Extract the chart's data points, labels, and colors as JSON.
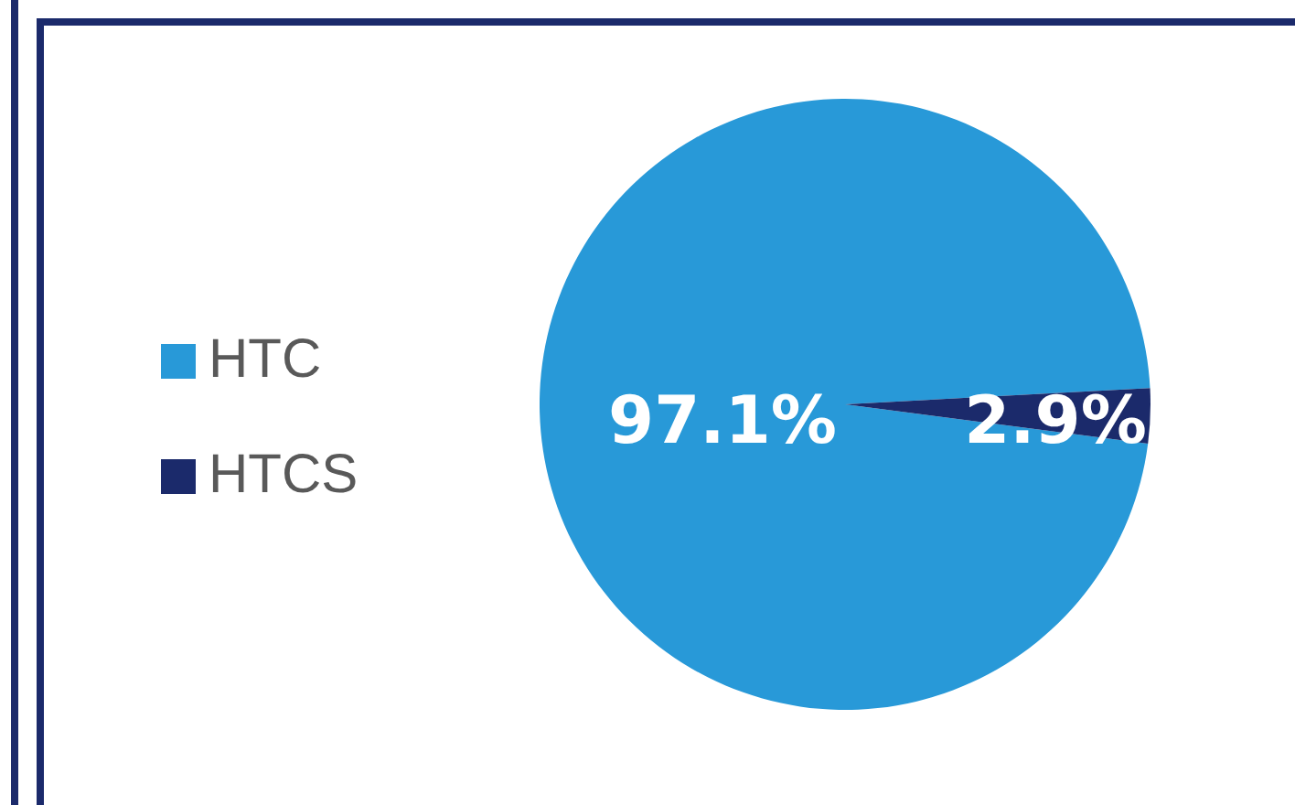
{
  "chart_data": {
    "type": "pie",
    "categories": [
      "HTC",
      "HTCS"
    ],
    "values": [
      97.1,
      2.9
    ],
    "colors": [
      "#2899d8",
      "#1b2a6b"
    ],
    "value_labels": [
      "97.1%",
      "2.9%"
    ],
    "legend": "left"
  }
}
